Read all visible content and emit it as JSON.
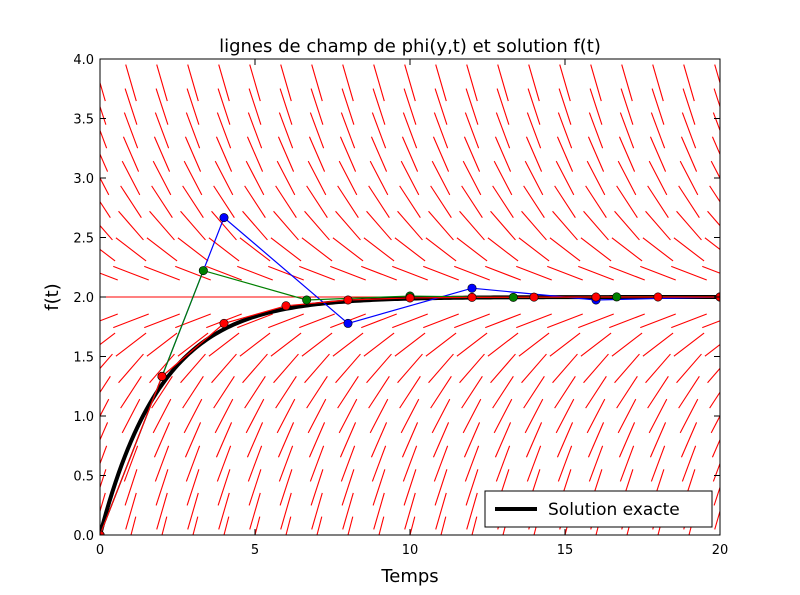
{
  "chart_data": {
    "type": "line",
    "title": "lignes de champ de phi(y,t) et solution f(t)",
    "xlabel": "Temps",
    "ylabel": "f(t)",
    "xlim": [
      0,
      20
    ],
    "ylim": [
      0,
      4
    ],
    "x_ticks": [
      "0",
      "5",
      "10",
      "15",
      "20"
    ],
    "y_ticks": [
      "0.0",
      "0.5",
      "1.0",
      "1.5",
      "2.0",
      "2.5",
      "3.0",
      "3.5",
      "4.0"
    ],
    "grid": false,
    "legend": {
      "position": "bottom-right",
      "entries": [
        "Solution exacte"
      ]
    },
    "field": {
      "color": "#ff0000",
      "t_values": [
        0,
        1,
        2,
        3,
        4,
        5,
        6,
        7,
        8,
        9,
        10,
        11,
        12,
        13,
        14,
        15,
        16,
        17,
        18,
        19,
        20
      ],
      "y_values": [
        0.0,
        0.2,
        0.4,
        0.6,
        0.8,
        1.0,
        1.2,
        1.4,
        1.6,
        1.8,
        2.0,
        2.2,
        2.4,
        2.6,
        2.8,
        3.0,
        3.2,
        3.4,
        3.6,
        3.8
      ]
    },
    "series": [
      {
        "name": "Solution exacte",
        "color": "#000000",
        "style": "thick-line",
        "function": "2*(1-exp(-t/2))"
      },
      {
        "color": "#0000ff",
        "x": [
          0,
          2,
          4,
          8,
          12,
          16,
          20
        ],
        "y": [
          0.0,
          1.333,
          2.667,
          1.778,
          2.074,
          1.975,
          2.0
        ]
      },
      {
        "color": "#008000",
        "x": [
          0,
          2,
          3.333,
          6.667,
          10,
          13.333,
          16.667,
          20
        ],
        "y": [
          0.0,
          1.333,
          2.222,
          1.975,
          2.008,
          1.997,
          2.001,
          2.0
        ]
      },
      {
        "color": "#ff0000",
        "x": [
          0,
          2,
          4,
          6,
          8,
          10,
          12,
          14,
          16,
          18,
          20
        ],
        "y": [
          0.0,
          1.333,
          1.778,
          1.926,
          1.975,
          1.992,
          1.997,
          1.999,
          2.0,
          2.0,
          2.0
        ]
      }
    ]
  }
}
